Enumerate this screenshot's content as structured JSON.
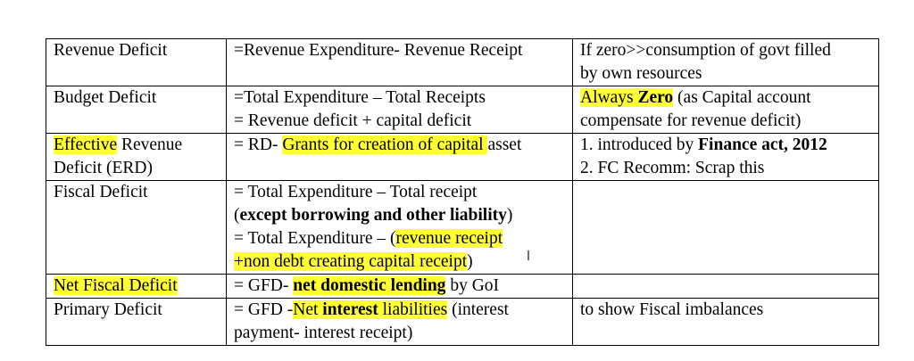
{
  "highlight_color": "#ffff33",
  "rows": [
    {
      "name": [
        [
          {
            "t": "Revenue Deficit"
          }
        ]
      ],
      "formula": [
        [
          {
            "t": "=Revenue Expenditure- Revenue Receipt"
          }
        ]
      ],
      "note": [
        [
          {
            "t": "If zero>>consumption of govt filled"
          }
        ],
        [
          {
            "t": "by own resources"
          }
        ]
      ]
    },
    {
      "name": [
        [
          {
            "t": "Budget Deficit"
          }
        ]
      ],
      "formula": [
        [
          {
            "t": "=Total Expenditure – Total Receipts"
          }
        ],
        [
          {
            "t": "= Revenue deficit + capital deficit"
          }
        ]
      ],
      "note": [
        [
          {
            "t": "Always ",
            "h": true
          },
          {
            "t": "Zero",
            "h": true,
            "b": true
          },
          {
            "t": " (as Capital account"
          }
        ],
        [
          {
            "t": "compensate for revenue deficit)"
          }
        ]
      ]
    },
    {
      "name": [
        [
          {
            "t": "Effective",
            "h": true
          },
          {
            "t": " Revenue"
          }
        ],
        [
          {
            "t": "Deficit (ERD)"
          }
        ]
      ],
      "formula": [
        [
          {
            "t": "= RD- "
          },
          {
            "t": "Grants for creation of capital ",
            "h": true
          },
          {
            "t": "asset"
          }
        ]
      ],
      "note": [
        [
          {
            "t": "1. introduced by "
          },
          {
            "t": "Finance act, 2012",
            "b": true
          }
        ],
        [
          {
            "t": "2. FC Recomm: Scrap this"
          }
        ]
      ]
    },
    {
      "name": [
        [
          {
            "t": "Fiscal Deficit"
          }
        ]
      ],
      "formula": [
        [
          {
            "t": "= Total Expenditure – Total receipt"
          }
        ],
        [
          {
            "t": "("
          },
          {
            "t": "except borrowing and other liability",
            "b": true
          },
          {
            "t": ")"
          }
        ],
        [
          {
            "t": "= Total Expenditure – ("
          },
          {
            "t": "revenue receipt",
            "h": true
          }
        ],
        [
          {
            "t": "+non debt creating capital receipt",
            "h": true
          },
          {
            "t": ")"
          }
        ]
      ],
      "note": []
    },
    {
      "name": [
        [
          {
            "t": "Net Fiscal Deficit",
            "h": true
          }
        ]
      ],
      "formula": [
        [
          {
            "t": "= GFD- "
          },
          {
            "t": "net domestic lending",
            "h": true,
            "b": true
          },
          {
            "t": " by GoI"
          }
        ]
      ],
      "note": []
    },
    {
      "name": [
        [
          {
            "t": "Primary Deficit"
          }
        ]
      ],
      "formula": [
        [
          {
            "t": "= GFD -"
          },
          {
            "t": "Net ",
            "h": true
          },
          {
            "t": "interest",
            "h": true,
            "b": true
          },
          {
            "t": " liabilities",
            "h": true
          },
          {
            "t": " (interest"
          }
        ],
        [
          {
            "t": "payment- interest receipt)"
          }
        ]
      ],
      "note": [
        [
          {
            "t": "to show Fiscal imbalances"
          }
        ]
      ]
    }
  ]
}
